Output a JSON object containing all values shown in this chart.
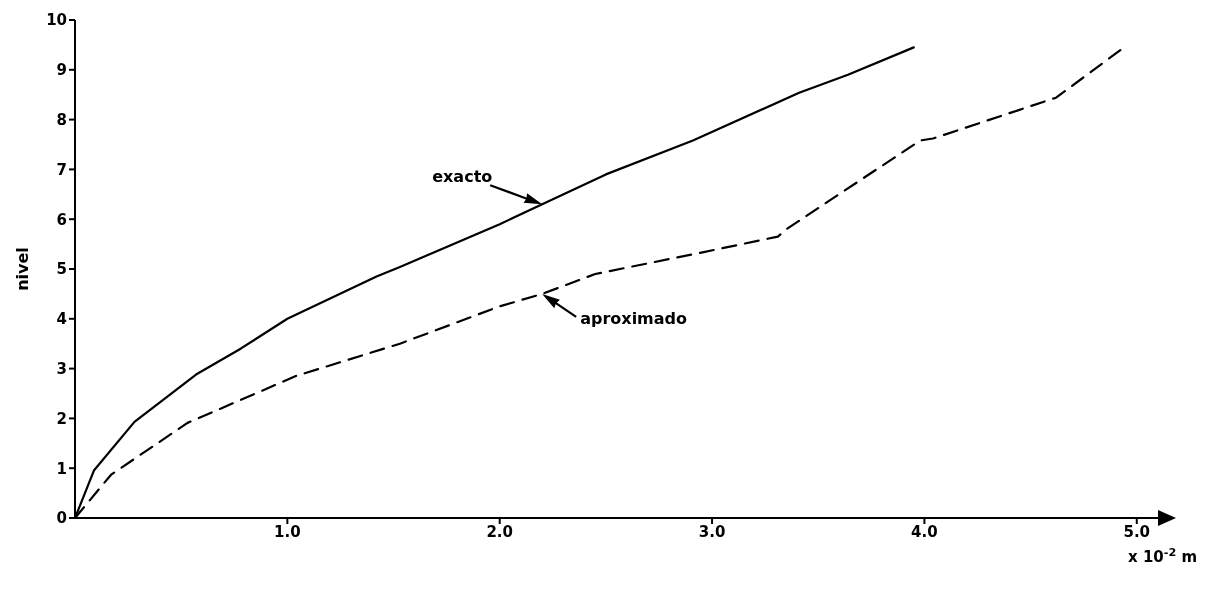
{
  "chart_data": {
    "type": "line",
    "xlabel": "x 10$^{-2}$ m",
    "ylabel": "nivel",
    "xlim": [
      0,
      5.1
    ],
    "ylim": [
      0,
      10
    ],
    "xticks": [
      {
        "value": 1,
        "label": "1.0"
      },
      {
        "value": 2,
        "label": "2.0"
      },
      {
        "value": 3,
        "label": "3.0"
      },
      {
        "value": 4,
        "label": "4.0"
      },
      {
        "value": 5,
        "label": "5.0"
      }
    ],
    "yticks": [
      0,
      1,
      2,
      3,
      4,
      5,
      6,
      7,
      8,
      9,
      10
    ],
    "grid": false,
    "legend": false,
    "marker": "none",
    "series": [
      {
        "name": "exacto",
        "color": "#000000",
        "line_style": "solid",
        "x": [
          0,
          0.09,
          0.28,
          0.57,
          0.78,
          1.0,
          1.42,
          1.53,
          2.0,
          2.2,
          2.5,
          2.91,
          3.41,
          3.64,
          3.95
        ],
        "values": [
          0,
          0.96,
          1.93,
          2.88,
          3.4,
          4.0,
          4.85,
          5.04,
          5.9,
          6.3,
          6.9,
          7.58,
          8.54,
          8.9,
          9.45
        ]
      },
      {
        "name": "aproximado",
        "color": "#000000",
        "line_style": "dashed",
        "x": [
          0,
          0.17,
          0.53,
          1.04,
          1.53,
          2.0,
          2.2,
          2.45,
          2.95,
          3.31,
          3.35,
          3.98,
          4.04,
          4.62,
          4.94
        ],
        "values": [
          0,
          0.87,
          1.91,
          2.85,
          3.5,
          4.25,
          4.5,
          4.9,
          5.33,
          5.65,
          5.8,
          7.58,
          7.62,
          8.44,
          9.45
        ]
      }
    ]
  }
}
